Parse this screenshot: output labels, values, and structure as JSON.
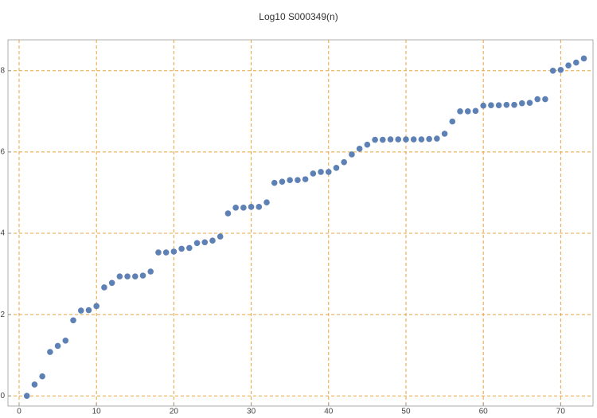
{
  "chart_data": {
    "type": "scatter",
    "title": "Log10 S000349(n)",
    "x": [
      1,
      2,
      3,
      4,
      5,
      6,
      7,
      8,
      9,
      10,
      11,
      12,
      13,
      14,
      15,
      16,
      17,
      18,
      19,
      20,
      21,
      22,
      23,
      24,
      25,
      26,
      27,
      28,
      29,
      30,
      31,
      32,
      33,
      34,
      35,
      36,
      37,
      38,
      39,
      40,
      41,
      42,
      43,
      44,
      45,
      46,
      47,
      48,
      49,
      50,
      51,
      52,
      53,
      54,
      55,
      56,
      57,
      58,
      59,
      60,
      61,
      62,
      63,
      64,
      65,
      66,
      67,
      68,
      69,
      70,
      71,
      72,
      73
    ],
    "values": [
      0,
      0.28,
      0.48,
      1.08,
      1.23,
      1.36,
      1.86,
      2.1,
      2.11,
      2.21,
      2.67,
      2.78,
      2.94,
      2.94,
      2.94,
      2.96,
      3.06,
      3.53,
      3.53,
      3.55,
      3.62,
      3.64,
      3.76,
      3.78,
      3.82,
      3.92,
      4.49,
      4.63,
      4.63,
      4.65,
      4.65,
      4.76,
      5.24,
      5.27,
      5.31,
      5.31,
      5.33,
      5.47,
      5.51,
      5.51,
      5.61,
      5.75,
      5.94,
      6.08,
      6.18,
      6.3,
      6.3,
      6.31,
      6.31,
      6.31,
      6.31,
      6.31,
      6.32,
      6.33,
      6.45,
      6.75,
      7.0,
      7.0,
      7.01,
      7.14,
      7.15,
      7.15,
      7.16,
      7.16,
      7.2,
      7.21,
      7.3,
      7.3,
      8.0,
      8.02,
      8.13,
      8.2,
      8.3
    ],
    "color": "#5e81b5",
    "grid_color": "#e8a33d",
    "xlim": [
      -1.44,
      74.18
    ],
    "xticks": [
      0,
      10,
      20,
      30,
      40,
      50,
      60,
      70
    ],
    "ylim": [
      -0.25,
      8.76
    ],
    "yticks": [
      0,
      2,
      4,
      6,
      8
    ],
    "grid": true
  }
}
